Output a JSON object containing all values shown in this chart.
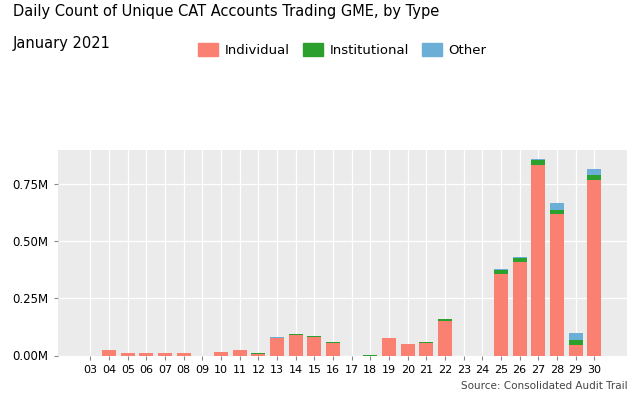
{
  "title_line1": "Daily Count of Unique CAT Accounts Trading GME, by Type",
  "title_line2": "January 2021",
  "source": "Source: Consolidated Audit Trail",
  "categories": [
    "03",
    "04",
    "05",
    "06",
    "07",
    "08",
    "09",
    "10",
    "11",
    "12",
    "13",
    "14",
    "15",
    "16",
    "17",
    "18",
    "19",
    "20",
    "21",
    "22",
    "23",
    "24",
    "25",
    "26",
    "27",
    "28",
    "29",
    "30"
  ],
  "individual": [
    0,
    22000,
    12000,
    11000,
    11000,
    11000,
    0,
    15000,
    25000,
    8000,
    75000,
    90000,
    80000,
    55000,
    0,
    0,
    75000,
    50000,
    55000,
    150000,
    0,
    0,
    355000,
    410000,
    835000,
    620000,
    45000,
    770000
  ],
  "institutional": [
    0,
    0,
    0,
    0,
    0,
    0,
    0,
    0,
    0,
    1500,
    3000,
    4000,
    3500,
    2000,
    0,
    2000,
    2000,
    2000,
    2000,
    8000,
    0,
    0,
    18000,
    18000,
    20000,
    18000,
    22000,
    20000
  ],
  "other": [
    0,
    0,
    0,
    0,
    0,
    0,
    0,
    0,
    0,
    500,
    1000,
    1000,
    1000,
    500,
    0,
    0,
    500,
    500,
    500,
    1000,
    0,
    0,
    5000,
    5000,
    8000,
    30000,
    30000,
    25000
  ],
  "individual_color": "#FA8072",
  "institutional_color": "#2CA02C",
  "other_color": "#6BAED6",
  "bg_color": "#EBEBEB",
  "fig_bg": "#FFFFFF",
  "ylim_max": 900000,
  "yticks": [
    0,
    250000,
    500000,
    750000
  ],
  "ytick_labels": [
    "0.00M",
    "0.25M",
    "0.50M",
    "0.75M"
  ],
  "legend_labels": [
    "Individual",
    "Institutional",
    "Other"
  ]
}
